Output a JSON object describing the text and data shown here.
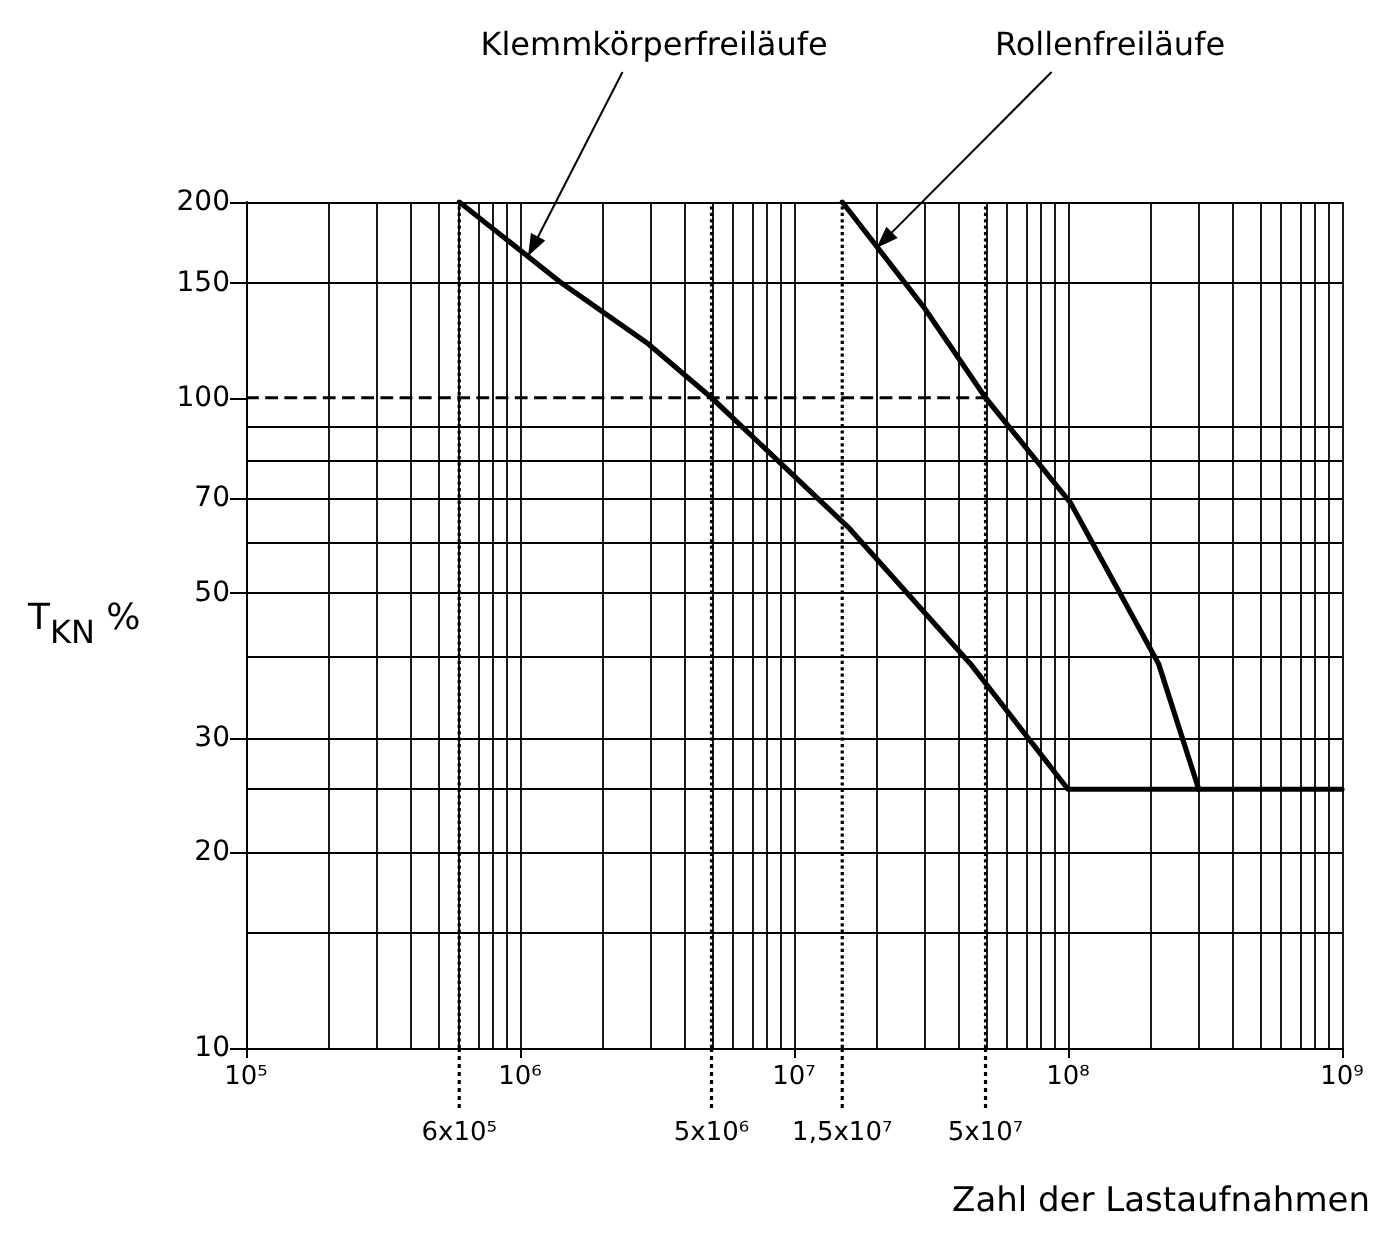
{
  "chart_data": {
    "type": "line",
    "xlabel": "Zahl der Lastaufnahmen",
    "ylabel": "T$_{KN}$ %",
    "log": "xy",
    "grid": true,
    "marker": "none",
    "line_style": "solid",
    "xlim": [
      100000,
      1000000000
    ],
    "ylim": [
      10,
      200
    ],
    "xticks": [
      {
        "value": 100000,
        "label": "10⁵"
      },
      {
        "value": 200000,
        "label": null
      },
      {
        "value": 300000,
        "label": null
      },
      {
        "value": 400000,
        "label": null
      },
      {
        "value": 500000,
        "label": null
      },
      {
        "value": 600000,
        "label": null
      },
      {
        "value": 700000,
        "label": null
      },
      {
        "value": 800000,
        "label": null
      },
      {
        "value": 900000,
        "label": null
      },
      {
        "value": 1000000,
        "label": "10⁶"
      },
      {
        "value": 2000000,
        "label": null
      },
      {
        "value": 3000000,
        "label": null
      },
      {
        "value": 4000000,
        "label": null
      },
      {
        "value": 5000000,
        "label": null
      },
      {
        "value": 6000000,
        "label": null
      },
      {
        "value": 7000000,
        "label": null
      },
      {
        "value": 8000000,
        "label": null
      },
      {
        "value": 9000000,
        "label": null
      },
      {
        "value": 10000000,
        "label": "10⁷"
      },
      {
        "value": 20000000,
        "label": null
      },
      {
        "value": 30000000,
        "label": null
      },
      {
        "value": 40000000,
        "label": null
      },
      {
        "value": 50000000,
        "label": null
      },
      {
        "value": 60000000,
        "label": null
      },
      {
        "value": 70000000,
        "label": null
      },
      {
        "value": 80000000,
        "label": null
      },
      {
        "value": 90000000,
        "label": null
      },
      {
        "value": 100000000,
        "label": "10⁸"
      },
      {
        "value": 200000000,
        "label": null
      },
      {
        "value": 300000000,
        "label": null
      },
      {
        "value": 400000000,
        "label": null
      },
      {
        "value": 500000000,
        "label": null
      },
      {
        "value": 600000000,
        "label": null
      },
      {
        "value": 700000000,
        "label": null
      },
      {
        "value": 800000000,
        "label": null
      },
      {
        "value": 900000000,
        "label": null
      },
      {
        "value": 1000000000,
        "label": "10⁹"
      }
    ],
    "yticks": [
      10,
      {
        "value": 15,
        "label": null
      },
      20,
      {
        "value": 25,
        "label": null
      },
      30,
      {
        "value": 40,
        "label": null
      },
      50,
      {
        "value": 60,
        "label": null
      },
      70,
      {
        "value": 80,
        "label": null
      },
      {
        "value": 90,
        "label": null
      },
      100,
      150,
      200
    ],
    "series": [
      {
        "color": "#000000",
        "x": [
          600000,
          1420000,
          2940000,
          5000000,
          15900000,
          44000000,
          100000000,
          1000000000
        ],
        "values": [
          200,
          150,
          121,
          100,
          63,
          39,
          25,
          25
        ]
      },
      {
        "color": "#000000",
        "x": [
          15000000,
          29700000,
          50000000,
          102000000,
          214000000,
          300000000
        ],
        "values": [
          200,
          138,
          100,
          69,
          39,
          25
        ]
      }
    ],
    "ref_lines": [
      {
        "axis": "x",
        "value": 600000,
        "label": "6x10⁵",
        "line_style": "dotted"
      },
      {
        "axis": "x",
        "value": 5000000,
        "label": "5x10⁶",
        "line_style": "dotted"
      },
      {
        "axis": "x",
        "value": 15000000,
        "label": "1,5x10⁷",
        "line_style": "dotted"
      },
      {
        "axis": "x",
        "value": 50000000,
        "label": "5x10⁷",
        "line_style": "dotted"
      },
      {
        "axis": "y",
        "value": 100,
        "label": null,
        "line_style": "dashed"
      }
    ],
    "annotations": [
      {
        "text": "Klemmkörperfreiläufe",
        "x": 1070000,
        "y": 165
      },
      {
        "text": "Rollenfreiläufe",
        "x": 20000000,
        "y": 170
      }
    ]
  }
}
